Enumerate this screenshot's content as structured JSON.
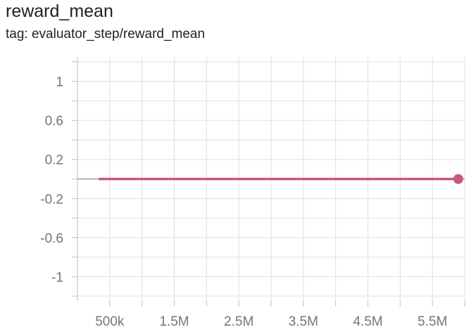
{
  "card": {
    "title": "reward_mean",
    "tag": "tag: evaluator_step/reward_mean"
  },
  "chart_data": {
    "type": "line",
    "title": "reward_mean",
    "subtitle": "tag: evaluator_step/reward_mean",
    "xlabel": "",
    "ylabel": "",
    "xlim": [
      0,
      6000000
    ],
    "ylim": [
      -1.25,
      1.25
    ],
    "grid": true,
    "legend": "none",
    "x_ticks": [
      {
        "value": 500000,
        "label": "500k"
      },
      {
        "value": 1500000,
        "label": "1.5M"
      },
      {
        "value": 2500000,
        "label": "2.5M"
      },
      {
        "value": 3500000,
        "label": "3.5M"
      },
      {
        "value": 4500000,
        "label": "4.5M"
      },
      {
        "value": 5500000,
        "label": "5.5M"
      }
    ],
    "y_ticks": [
      {
        "value": 1,
        "label": "1"
      },
      {
        "value": 0.6,
        "label": "0.6"
      },
      {
        "value": 0.2,
        "label": "0.2"
      },
      {
        "value": -0.2,
        "label": "-0.2"
      },
      {
        "value": -0.6,
        "label": "-0.6"
      },
      {
        "value": -1,
        "label": "-1"
      }
    ],
    "series": [
      {
        "color": "#c9577d",
        "x": [
          330000,
          1000000,
          2000000,
          3000000,
          4000000,
          5000000,
          5900000
        ],
        "values": [
          0,
          0,
          0,
          0,
          0,
          0,
          0
        ],
        "highlight_last": true
      }
    ]
  }
}
